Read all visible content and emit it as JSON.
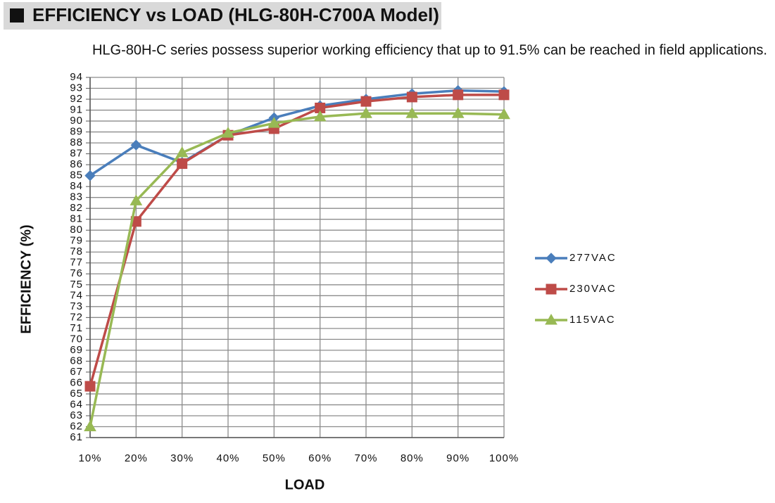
{
  "chart_data": {
    "type": "line",
    "title": "EFFICIENCY vs LOAD (HLG-80H-C700A Model)",
    "subtitle": "HLG-80H-C series possess superior working efficiency that up to 91.5% can be reached in field applications.",
    "x_label": "LOAD",
    "y_label": "EFFICIENCY (%)",
    "categories": [
      "10%",
      "20%",
      "30%",
      "40%",
      "50%",
      "60%",
      "70%",
      "80%",
      "90%",
      "100%"
    ],
    "series": [
      {
        "name": "277VAC",
        "color": "#4a7ebb",
        "marker": "diamond",
        "values": [
          85.0,
          87.8,
          86.2,
          88.7,
          90.3,
          91.4,
          92.0,
          92.5,
          92.8,
          92.7
        ]
      },
      {
        "name": "230VAC",
        "color": "#be4b48",
        "marker": "square",
        "values": [
          65.7,
          80.8,
          86.1,
          88.7,
          89.3,
          91.2,
          91.8,
          92.2,
          92.4,
          92.4
        ]
      },
      {
        "name": "115VAC",
        "color": "#98b954",
        "marker": "triangle",
        "values": [
          62.0,
          82.7,
          87.1,
          88.9,
          89.8,
          90.4,
          90.7,
          90.7,
          90.7,
          90.6
        ]
      }
    ],
    "ylim": [
      61,
      94
    ],
    "yticks": [
      61,
      62,
      63,
      64,
      65,
      66,
      67,
      68,
      69,
      70,
      71,
      72,
      73,
      74,
      75,
      76,
      77,
      78,
      79,
      80,
      81,
      82,
      83,
      84,
      85,
      86,
      87,
      88,
      89,
      90,
      91,
      92,
      93,
      94
    ],
    "grid": true,
    "legend": "right"
  }
}
